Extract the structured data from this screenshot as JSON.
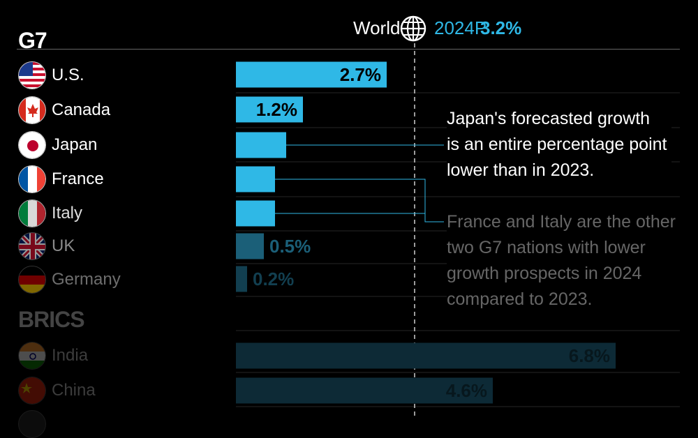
{
  "header": {
    "world_label": "World",
    "period": "2024P",
    "world_value": "3.2%",
    "accent_color": "#2fb8e6"
  },
  "groups": {
    "g7": "G7",
    "brics": "BRICS"
  },
  "countries": [
    {
      "name": "U.S.",
      "label": "2.7%",
      "flag": "us-flag"
    },
    {
      "name": "Canada",
      "label": "1.2%",
      "flag": "canada-flag"
    },
    {
      "name": "Japan",
      "label": "0.9%",
      "flag": "japan-flag"
    },
    {
      "name": "France",
      "label": "0.7%",
      "flag": "france-flag"
    },
    {
      "name": "Italy",
      "label": "0.7%",
      "flag": "italy-flag"
    },
    {
      "name": "UK",
      "label": "0.5%",
      "flag": "uk-flag"
    },
    {
      "name": "Germany",
      "label": "0.2%",
      "flag": "germany-flag"
    },
    {
      "name": "India",
      "label": "6.8%",
      "flag": "india-flag"
    },
    {
      "name": "China",
      "label": "4.6%",
      "flag": "china-flag"
    }
  ],
  "annotations": {
    "japan_note": [
      "Japan's forecasted growth",
      "is an entire percentage point",
      "lower than in 2023."
    ],
    "france_italy_note": [
      "France and Italy are the other",
      "two G7 nations with lower",
      "growth prospects in 2024",
      "compared to 2023."
    ]
  },
  "chart_data": {
    "type": "bar",
    "orientation": "horizontal",
    "title": "",
    "xlabel": "",
    "ylabel": "",
    "categories": [
      "U.S.",
      "Canada",
      "Japan",
      "France",
      "Italy",
      "UK",
      "Germany",
      "India",
      "China"
    ],
    "values": [
      2.7,
      1.2,
      0.9,
      0.7,
      0.7,
      0.5,
      0.2,
      6.8,
      4.6
    ],
    "groups": [
      {
        "name": "G7",
        "categories": [
          "U.S.",
          "Canada",
          "Japan",
          "France",
          "Italy",
          "UK",
          "Germany"
        ]
      },
      {
        "name": "BRICS",
        "categories": [
          "India",
          "China"
        ]
      }
    ],
    "reference_line": {
      "label": "World",
      "period": "2024P",
      "value": 3.2
    },
    "xlim": [
      0,
      6.8
    ],
    "grid": false,
    "bar_color": "#2fb8e6"
  }
}
